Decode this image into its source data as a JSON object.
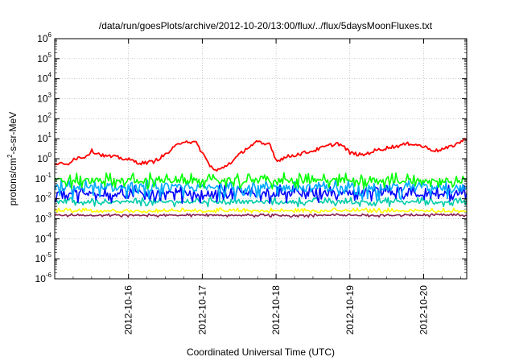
{
  "chart_data": {
    "type": "line",
    "title": "/data/run/goesPlots/archive/2012-10-20/13:00/flux/../flux/5daysMoonFluxes.txt",
    "xlabel": "Coordinated Universal Time (UTC)",
    "ylabel": {
      "prefix": "protons/cm",
      "sup": "2",
      "suffix": "-s-sr-MeV"
    },
    "y_scale": "log",
    "ylim_exponents": [
      -6,
      6
    ],
    "y_ticks": [
      {
        "base": "10",
        "exp": "6"
      },
      {
        "base": "10",
        "exp": "5"
      },
      {
        "base": "10",
        "exp": "4"
      },
      {
        "base": "10",
        "exp": "3"
      },
      {
        "base": "10",
        "exp": "2"
      },
      {
        "base": "10",
        "exp": "1"
      },
      {
        "base": "10",
        "exp": "0"
      },
      {
        "base": "10",
        "exp": "-1"
      },
      {
        "base": "10",
        "exp": "-2"
      },
      {
        "base": "10",
        "exp": "-3"
      },
      {
        "base": "10",
        "exp": "-4"
      },
      {
        "base": "10",
        "exp": "-5"
      },
      {
        "base": "10",
        "exp": "-6"
      }
    ],
    "xlim": [
      "2012-10-15 00:00",
      "2012-10-20 14:00"
    ],
    "x_ticks": [
      "2012-10-16",
      "2012-10-17",
      "2012-10-18",
      "2012-10-19",
      "2012-10-20"
    ],
    "grid": true,
    "legend": "none",
    "series": [
      {
        "color": "#ff0000",
        "values": [
          [
            "2012-10-15 00:00",
            0.6
          ],
          [
            "2012-10-15 04:00",
            0.5
          ],
          [
            "2012-10-15 06:00",
            1.0
          ],
          [
            "2012-10-15 10:00",
            1.3
          ],
          [
            "2012-10-15 12:00",
            2.5
          ],
          [
            "2012-10-15 16:00",
            1.4
          ],
          [
            "2012-10-15 20:00",
            1.2
          ],
          [
            "2012-10-16 00:00",
            0.9
          ],
          [
            "2012-10-16 04:00",
            0.6
          ],
          [
            "2012-10-16 08:00",
            0.7
          ],
          [
            "2012-10-16 12:00",
            1.6
          ],
          [
            "2012-10-16 16:00",
            5.0
          ],
          [
            "2012-10-16 18:00",
            8.0
          ],
          [
            "2012-10-16 22:00",
            6.0
          ],
          [
            "2012-10-17 00:00",
            2.0
          ],
          [
            "2012-10-17 02:00",
            0.6
          ],
          [
            "2012-10-17 04:00",
            0.25
          ],
          [
            "2012-10-17 06:00",
            0.3
          ],
          [
            "2012-10-17 10:00",
            0.8
          ],
          [
            "2012-10-17 14:00",
            3.0
          ],
          [
            "2012-10-17 18:00",
            7.0
          ],
          [
            "2012-10-17 20:00",
            5.0
          ],
          [
            "2012-10-17 22:00",
            6.0
          ],
          [
            "2012-10-18 00:00",
            0.8
          ],
          [
            "2012-10-18 04:00",
            1.3
          ],
          [
            "2012-10-18 08:00",
            1.8
          ],
          [
            "2012-10-18 12:00",
            2.5
          ],
          [
            "2012-10-18 16:00",
            4.0
          ],
          [
            "2012-10-18 20:00",
            6.0
          ],
          [
            "2012-10-18 22:00",
            4.0
          ],
          [
            "2012-10-19 00:00",
            2.0
          ],
          [
            "2012-10-19 04:00",
            1.5
          ],
          [
            "2012-10-19 08:00",
            2.5
          ],
          [
            "2012-10-19 12:00",
            3.5
          ],
          [
            "2012-10-19 16:00",
            4.5
          ],
          [
            "2012-10-19 20:00",
            6.0
          ],
          [
            "2012-10-20 00:00",
            4.0
          ],
          [
            "2012-10-20 04:00",
            2.5
          ],
          [
            "2012-10-20 08:00",
            3.5
          ],
          [
            "2012-10-20 12:00",
            7.0
          ],
          [
            "2012-10-20 14:00",
            10.0
          ]
        ]
      },
      {
        "color": "#00ff00",
        "level": 0.08,
        "band": [
          0.03,
          0.2
        ]
      },
      {
        "color": "#00aaff",
        "level": 0.035,
        "band": [
          0.008,
          0.09
        ]
      },
      {
        "color": "#0000ff",
        "level": 0.018,
        "band": [
          0.006,
          0.05
        ]
      },
      {
        "color": "#00ccaa",
        "level": 0.007,
        "band": [
          0.004,
          0.012
        ]
      },
      {
        "color": "#ffff00",
        "level": 0.0025,
        "band": [
          0.002,
          0.0035
        ]
      },
      {
        "color": "#8b2252",
        "level": 0.0015,
        "band": [
          0.0012,
          0.0018
        ]
      }
    ]
  }
}
